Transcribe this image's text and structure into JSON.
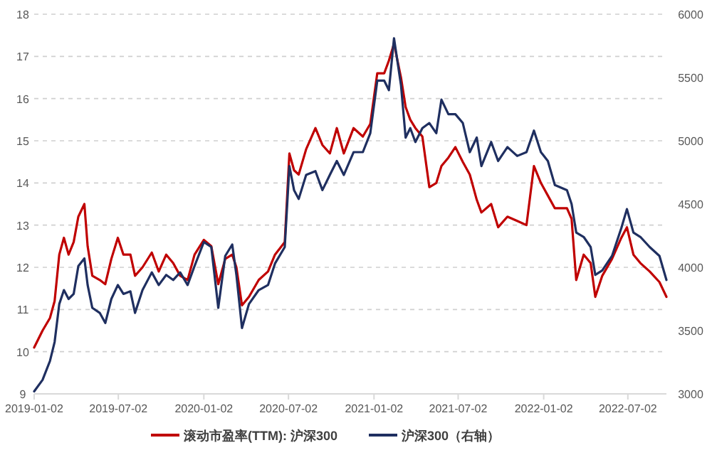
{
  "chart_data": {
    "type": "line",
    "x": [
      "2019-01-02",
      "2019-01-20",
      "2019-02-05",
      "2019-02-15",
      "2019-02-25",
      "2019-03-07",
      "2019-03-17",
      "2019-03-28",
      "2019-04-07",
      "2019-04-20",
      "2019-04-27",
      "2019-05-07",
      "2019-05-23",
      "2019-06-04",
      "2019-06-17",
      "2019-07-01",
      "2019-07-13",
      "2019-07-28",
      "2019-08-07",
      "2019-08-23",
      "2019-09-12",
      "2019-09-27",
      "2019-10-13",
      "2019-10-28",
      "2019-11-12",
      "2019-11-28",
      "2019-12-13",
      "2020-01-02",
      "2020-01-18",
      "2020-02-02",
      "2020-02-17",
      "2020-03-03",
      "2020-03-12",
      "2020-03-24",
      "2020-04-08",
      "2020-04-29",
      "2020-05-19",
      "2020-06-03",
      "2020-06-24",
      "2020-07-04",
      "2020-07-14",
      "2020-07-24",
      "2020-08-09",
      "2020-08-29",
      "2020-09-13",
      "2020-09-29",
      "2020-10-14",
      "2020-10-29",
      "2020-11-19",
      "2020-12-09",
      "2020-12-25",
      "2021-01-09",
      "2021-01-24",
      "2021-02-03",
      "2021-02-14",
      "2021-03-01",
      "2021-03-11",
      "2021-03-21",
      "2021-04-01",
      "2021-04-16",
      "2021-05-01",
      "2021-05-16",
      "2021-05-27",
      "2021-06-11",
      "2021-06-26",
      "2021-07-12",
      "2021-07-27",
      "2021-08-11",
      "2021-08-21",
      "2021-09-11",
      "2021-09-26",
      "2021-10-16",
      "2021-11-06",
      "2021-11-26",
      "2021-12-12",
      "2021-12-27",
      "2022-01-11",
      "2022-01-26",
      "2022-02-21",
      "2022-03-03",
      "2022-03-13",
      "2022-03-29",
      "2022-04-13",
      "2022-04-23",
      "2022-05-08",
      "2022-05-29",
      "2022-06-18",
      "2022-06-30",
      "2022-07-14",
      "2022-07-29",
      "2022-08-18",
      "2022-09-08",
      "2022-09-23"
    ],
    "series": [
      {
        "name": "滚动市盈率(TTM): 沪深300",
        "color": "#c00000",
        "values": [
          10.1,
          10.5,
          10.8,
          11.2,
          12.3,
          12.7,
          12.3,
          12.6,
          13.2,
          13.5,
          12.5,
          11.8,
          11.7,
          11.6,
          12.2,
          12.7,
          12.3,
          12.3,
          11.8,
          12.0,
          12.35,
          11.9,
          12.3,
          12.1,
          11.8,
          11.7,
          12.3,
          12.65,
          12.5,
          11.6,
          12.2,
          12.3,
          12.0,
          11.1,
          11.3,
          11.7,
          11.9,
          12.3,
          12.6,
          14.7,
          14.3,
          14.2,
          14.8,
          15.3,
          14.9,
          14.7,
          15.3,
          14.7,
          15.3,
          15.1,
          15.4,
          16.6,
          16.6,
          16.9,
          17.3,
          16.5,
          15.8,
          15.5,
          15.3,
          15.1,
          13.9,
          14.0,
          14.4,
          14.6,
          14.85,
          14.5,
          14.2,
          13.6,
          13.3,
          13.5,
          12.95,
          13.2,
          13.1,
          13.0,
          14.4,
          14.0,
          13.7,
          13.4,
          13.4,
          13.15,
          11.7,
          12.3,
          12.1,
          11.3,
          11.8,
          12.2,
          12.7,
          12.95,
          12.3,
          12.1,
          11.9,
          11.65,
          11.3
        ]
      },
      {
        "name": "沪深300（右轴）",
        "color": "#1f2f60",
        "axis": "y2",
        "values": [
          3020,
          3110,
          3260,
          3410,
          3710,
          3820,
          3750,
          3790,
          4010,
          4070,
          3860,
          3680,
          3640,
          3560,
          3750,
          3860,
          3790,
          3810,
          3640,
          3820,
          3960,
          3860,
          3940,
          3900,
          3960,
          3860,
          4010,
          4200,
          4160,
          3680,
          4090,
          4180,
          3940,
          3520,
          3710,
          3820,
          3860,
          4030,
          4160,
          4800,
          4610,
          4540,
          4730,
          4760,
          4610,
          4730,
          4840,
          4730,
          4910,
          4910,
          5060,
          5475,
          5475,
          5400,
          5810,
          5440,
          5025,
          5100,
          4990,
          5100,
          5140,
          5060,
          5325,
          5210,
          5210,
          5140,
          4910,
          5025,
          4800,
          4990,
          4840,
          4950,
          4880,
          4910,
          5080,
          4910,
          4840,
          4650,
          4610,
          4500,
          4275,
          4240,
          4160,
          3940,
          3975,
          4090,
          4310,
          4460,
          4275,
          4240,
          4160,
          4090,
          3900
        ]
      }
    ],
    "xlim": [
      "2019-01-02",
      "2022-09-23"
    ],
    "xticks": [
      "2019-01-02",
      "2019-07-02",
      "2020-01-02",
      "2020-07-02",
      "2021-01-02",
      "2021-07-02",
      "2022-01-02",
      "2022-07-02"
    ],
    "ylim": [
      9,
      18
    ],
    "yticks": [
      9,
      10,
      11,
      12,
      13,
      14,
      15,
      16,
      17,
      18
    ],
    "y2lim": [
      3000,
      6000
    ],
    "y2ticks": [
      3000,
      3500,
      4000,
      4500,
      5000,
      5500,
      6000
    ],
    "grid": "y",
    "legend": "bottom",
    "line_style": "solid",
    "marker": "none"
  }
}
